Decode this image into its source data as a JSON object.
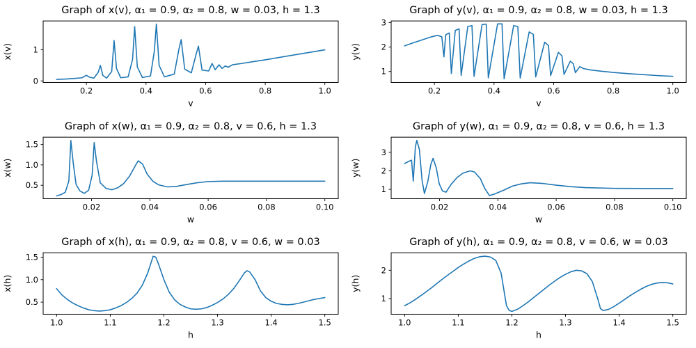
{
  "figure": {
    "background": "#ffffff",
    "line_color": "#1f77b4",
    "spine_color": "#000000",
    "text_color": "#000000"
  },
  "chart_data": [
    {
      "type": "line",
      "title": "Graph of x(v), α₁ = 0.9, α₂ = 0.8, w = 0.03, h = 1.3",
      "xlabel": "v",
      "ylabel": "x(v)",
      "xlim": [
        0.055,
        1.045
      ],
      "ylim": [
        -0.05,
        1.93
      ],
      "xticks": [
        0.2,
        0.4,
        0.6,
        0.8,
        1.0
      ],
      "xtick_labels": [
        "0.2",
        "0.4",
        "0.6",
        "0.8",
        "1.0"
      ],
      "yticks": [
        0,
        1
      ],
      "ytick_labels": [
        "0",
        "1"
      ],
      "legend": null,
      "grid": false,
      "points": [
        [
          0.1,
          0.05
        ],
        [
          0.13,
          0.06
        ],
        [
          0.16,
          0.08
        ],
        [
          0.185,
          0.1
        ],
        [
          0.2,
          0.18
        ],
        [
          0.21,
          0.12
        ],
        [
          0.225,
          0.09
        ],
        [
          0.24,
          0.28
        ],
        [
          0.247,
          0.5
        ],
        [
          0.255,
          0.18
        ],
        [
          0.268,
          0.09
        ],
        [
          0.285,
          0.3
        ],
        [
          0.293,
          1.3
        ],
        [
          0.301,
          0.4
        ],
        [
          0.315,
          0.1
        ],
        [
          0.34,
          0.13
        ],
        [
          0.355,
          0.7
        ],
        [
          0.362,
          1.75
        ],
        [
          0.371,
          0.45
        ],
        [
          0.388,
          0.11
        ],
        [
          0.415,
          0.16
        ],
        [
          0.428,
          0.95
        ],
        [
          0.435,
          1.83
        ],
        [
          0.444,
          0.5
        ],
        [
          0.462,
          0.13
        ],
        [
          0.495,
          0.22
        ],
        [
          0.51,
          1.0
        ],
        [
          0.518,
          1.33
        ],
        [
          0.53,
          0.38
        ],
        [
          0.552,
          0.26
        ],
        [
          0.568,
          0.85
        ],
        [
          0.576,
          1.12
        ],
        [
          0.588,
          0.35
        ],
        [
          0.61,
          0.32
        ],
        [
          0.622,
          0.56
        ],
        [
          0.632,
          0.36
        ],
        [
          0.645,
          0.52
        ],
        [
          0.655,
          0.4
        ],
        [
          0.666,
          0.48
        ],
        [
          0.676,
          0.44
        ],
        [
          0.69,
          0.52
        ],
        [
          0.72,
          0.56
        ],
        [
          0.76,
          0.62
        ],
        [
          0.8,
          0.68
        ],
        [
          0.85,
          0.76
        ],
        [
          0.9,
          0.84
        ],
        [
          0.95,
          0.92
        ],
        [
          1.0,
          1.0
        ]
      ]
    },
    {
      "type": "line",
      "title": "Graph of y(v), α₁ = 0.9, α₂ = 0.8, w = 0.03, h = 1.3",
      "xlabel": "v",
      "ylabel": "y(v)",
      "xlim": [
        0.055,
        1.045
      ],
      "ylim": [
        0.55,
        3.07
      ],
      "xticks": [
        0.2,
        0.4,
        0.6,
        0.8,
        1.0
      ],
      "xtick_labels": [
        "0.2",
        "0.4",
        "0.6",
        "0.8",
        "1.0"
      ],
      "yticks": [
        1,
        2,
        3
      ],
      "ytick_labels": [
        "1",
        "2",
        "3"
      ],
      "legend": null,
      "grid": false,
      "points": [
        [
          0.1,
          2.05
        ],
        [
          0.13,
          2.18
        ],
        [
          0.16,
          2.3
        ],
        [
          0.19,
          2.42
        ],
        [
          0.21,
          2.48
        ],
        [
          0.225,
          2.42
        ],
        [
          0.232,
          1.6
        ],
        [
          0.238,
          2.5
        ],
        [
          0.25,
          2.58
        ],
        [
          0.257,
          0.92
        ],
        [
          0.27,
          2.68
        ],
        [
          0.283,
          2.75
        ],
        [
          0.29,
          0.84
        ],
        [
          0.312,
          2.84
        ],
        [
          0.326,
          2.88
        ],
        [
          0.333,
          0.8
        ],
        [
          0.36,
          2.92
        ],
        [
          0.374,
          2.94
        ],
        [
          0.381,
          0.74
        ],
        [
          0.412,
          2.95
        ],
        [
          0.427,
          2.95
        ],
        [
          0.434,
          0.7
        ],
        [
          0.466,
          2.88
        ],
        [
          0.48,
          2.84
        ],
        [
          0.488,
          0.73
        ],
        [
          0.518,
          2.62
        ],
        [
          0.532,
          2.52
        ],
        [
          0.54,
          0.78
        ],
        [
          0.57,
          2.2
        ],
        [
          0.583,
          2.06
        ],
        [
          0.59,
          0.83
        ],
        [
          0.616,
          1.78
        ],
        [
          0.628,
          1.64
        ],
        [
          0.635,
          0.88
        ],
        [
          0.656,
          1.42
        ],
        [
          0.666,
          1.32
        ],
        [
          0.673,
          0.95
        ],
        [
          0.688,
          1.2
        ],
        [
          0.7,
          1.12
        ],
        [
          0.725,
          1.06
        ],
        [
          0.76,
          1.01
        ],
        [
          0.8,
          0.96
        ],
        [
          0.85,
          0.91
        ],
        [
          0.9,
          0.87
        ],
        [
          0.95,
          0.83
        ],
        [
          1.0,
          0.8
        ]
      ]
    },
    {
      "type": "line",
      "title": "Graph of x(w), α₁ = 0.9, α₂ = 0.8, v = 0.6, h = 1.3",
      "xlabel": "w",
      "ylabel": "x(w)",
      "xlim": [
        0.0034,
        0.1046
      ],
      "ylim": [
        0.17,
        1.68
      ],
      "xticks": [
        0.02,
        0.04,
        0.06,
        0.08,
        0.1
      ],
      "xtick_labels": [
        "0.02",
        "0.04",
        "0.06",
        "0.08",
        "0.10"
      ],
      "yticks": [
        0.5,
        1.0,
        1.5
      ],
      "ytick_labels": [
        "0.5",
        "1.0",
        "1.5"
      ],
      "legend": null,
      "grid": false,
      "points": [
        [
          0.008,
          0.24
        ],
        [
          0.0095,
          0.27
        ],
        [
          0.011,
          0.33
        ],
        [
          0.0122,
          0.6
        ],
        [
          0.0129,
          1.6
        ],
        [
          0.0137,
          1.05
        ],
        [
          0.0147,
          0.52
        ],
        [
          0.016,
          0.36
        ],
        [
          0.0175,
          0.3
        ],
        [
          0.019,
          0.38
        ],
        [
          0.0202,
          0.75
        ],
        [
          0.0209,
          1.55
        ],
        [
          0.0217,
          1.08
        ],
        [
          0.023,
          0.56
        ],
        [
          0.025,
          0.42
        ],
        [
          0.027,
          0.39
        ],
        [
          0.029,
          0.44
        ],
        [
          0.031,
          0.54
        ],
        [
          0.033,
          0.72
        ],
        [
          0.035,
          0.98
        ],
        [
          0.036,
          1.1
        ],
        [
          0.0375,
          1.02
        ],
        [
          0.039,
          0.78
        ],
        [
          0.041,
          0.6
        ],
        [
          0.043,
          0.51
        ],
        [
          0.046,
          0.46
        ],
        [
          0.049,
          0.47
        ],
        [
          0.052,
          0.51
        ],
        [
          0.056,
          0.56
        ],
        [
          0.06,
          0.59
        ],
        [
          0.065,
          0.6
        ],
        [
          0.07,
          0.6
        ],
        [
          0.08,
          0.6
        ],
        [
          0.09,
          0.6
        ],
        [
          0.1,
          0.6
        ]
      ]
    },
    {
      "type": "line",
      "title": "Graph of y(w), α₁ = 0.9, α₂ = 0.8, v = 0.6, h = 1.3",
      "xlabel": "w",
      "ylabel": "y(w)",
      "xlim": [
        0.0034,
        0.1046
      ],
      "ylim": [
        0.5,
        3.82
      ],
      "xticks": [
        0.02,
        0.04,
        0.06,
        0.08,
        0.1
      ],
      "xtick_labels": [
        "0.02",
        "0.04",
        "0.06",
        "0.08",
        "0.10"
      ],
      "yticks": [
        1,
        2,
        3
      ],
      "ytick_labels": [
        "1",
        "2",
        "3"
      ],
      "legend": null,
      "grid": false,
      "points": [
        [
          0.008,
          2.4
        ],
        [
          0.0095,
          2.52
        ],
        [
          0.0104,
          2.58
        ],
        [
          0.011,
          1.45
        ],
        [
          0.0117,
          3.3
        ],
        [
          0.0122,
          3.65
        ],
        [
          0.0131,
          3.15
        ],
        [
          0.014,
          1.5
        ],
        [
          0.0148,
          0.78
        ],
        [
          0.016,
          1.45
        ],
        [
          0.017,
          2.35
        ],
        [
          0.0178,
          2.68
        ],
        [
          0.0189,
          2.15
        ],
        [
          0.0199,
          1.3
        ],
        [
          0.021,
          0.92
        ],
        [
          0.0222,
          0.85
        ],
        [
          0.024,
          1.28
        ],
        [
          0.026,
          1.64
        ],
        [
          0.028,
          1.88
        ],
        [
          0.0305,
          2.0
        ],
        [
          0.032,
          1.94
        ],
        [
          0.034,
          1.58
        ],
        [
          0.0355,
          1.05
        ],
        [
          0.0371,
          0.67
        ],
        [
          0.039,
          0.76
        ],
        [
          0.042,
          0.96
        ],
        [
          0.045,
          1.18
        ],
        [
          0.048,
          1.3
        ],
        [
          0.051,
          1.36
        ],
        [
          0.055,
          1.33
        ],
        [
          0.06,
          1.23
        ],
        [
          0.065,
          1.15
        ],
        [
          0.07,
          1.1
        ],
        [
          0.08,
          1.06
        ],
        [
          0.09,
          1.05
        ],
        [
          0.1,
          1.05
        ]
      ]
    },
    {
      "type": "line",
      "title": "Graph of x(h), α₁ = 0.9, α₂ = 0.8, v = 0.6, w = 0.03",
      "xlabel": "h",
      "ylabel": "x(h)",
      "xlim": [
        0.975,
        1.525
      ],
      "ylim": [
        0.23,
        1.6
      ],
      "xticks": [
        1.0,
        1.1,
        1.2,
        1.3,
        1.4,
        1.5
      ],
      "xtick_labels": [
        "1.0",
        "1.1",
        "1.2",
        "1.3",
        "1.4",
        "1.5"
      ],
      "yticks": [
        0.5,
        1.0,
        1.5
      ],
      "ytick_labels": [
        "0.5",
        "1.0",
        "1.5"
      ],
      "legend": null,
      "grid": false,
      "points": [
        [
          1.0,
          0.8
        ],
        [
          1.01,
          0.66
        ],
        [
          1.02,
          0.56
        ],
        [
          1.03,
          0.48
        ],
        [
          1.04,
          0.42
        ],
        [
          1.05,
          0.37
        ],
        [
          1.06,
          0.33
        ],
        [
          1.07,
          0.31
        ],
        [
          1.08,
          0.3
        ],
        [
          1.09,
          0.31
        ],
        [
          1.1,
          0.33
        ],
        [
          1.11,
          0.37
        ],
        [
          1.12,
          0.42
        ],
        [
          1.13,
          0.49
        ],
        [
          1.14,
          0.58
        ],
        [
          1.15,
          0.7
        ],
        [
          1.16,
          0.88
        ],
        [
          1.17,
          1.15
        ],
        [
          1.18,
          1.52
        ],
        [
          1.185,
          1.5
        ],
        [
          1.19,
          1.35
        ],
        [
          1.2,
          1.0
        ],
        [
          1.21,
          0.72
        ],
        [
          1.22,
          0.55
        ],
        [
          1.23,
          0.45
        ],
        [
          1.24,
          0.39
        ],
        [
          1.25,
          0.35
        ],
        [
          1.26,
          0.34
        ],
        [
          1.27,
          0.35
        ],
        [
          1.28,
          0.38
        ],
        [
          1.29,
          0.43
        ],
        [
          1.3,
          0.49
        ],
        [
          1.31,
          0.57
        ],
        [
          1.32,
          0.67
        ],
        [
          1.33,
          0.8
        ],
        [
          1.34,
          0.97
        ],
        [
          1.35,
          1.15
        ],
        [
          1.355,
          1.2
        ],
        [
          1.36,
          1.17
        ],
        [
          1.37,
          1.0
        ],
        [
          1.38,
          0.75
        ],
        [
          1.39,
          0.6
        ],
        [
          1.4,
          0.52
        ],
        [
          1.41,
          0.47
        ],
        [
          1.42,
          0.45
        ],
        [
          1.43,
          0.44
        ],
        [
          1.44,
          0.45
        ],
        [
          1.45,
          0.47
        ],
        [
          1.46,
          0.5
        ],
        [
          1.47,
          0.53
        ],
        [
          1.48,
          0.56
        ],
        [
          1.49,
          0.58
        ],
        [
          1.5,
          0.6
        ]
      ]
    },
    {
      "type": "line",
      "title": "Graph of y(h), α₁ = 0.9, α₂ = 0.8, v = 0.6, w = 0.03",
      "xlabel": "h",
      "ylabel": "y(h)",
      "xlim": [
        0.975,
        1.525
      ],
      "ylim": [
        0.45,
        2.62
      ],
      "xticks": [
        1.0,
        1.1,
        1.2,
        1.3,
        1.4,
        1.5
      ],
      "xtick_labels": [
        "1.0",
        "1.1",
        "1.2",
        "1.3",
        "1.4",
        "1.5"
      ],
      "yticks": [
        1,
        2
      ],
      "ytick_labels": [
        "1",
        "2"
      ],
      "legend": null,
      "grid": false,
      "points": [
        [
          1.0,
          0.75
        ],
        [
          1.01,
          0.85
        ],
        [
          1.02,
          0.97
        ],
        [
          1.03,
          1.1
        ],
        [
          1.04,
          1.24
        ],
        [
          1.05,
          1.38
        ],
        [
          1.06,
          1.53
        ],
        [
          1.07,
          1.68
        ],
        [
          1.08,
          1.82
        ],
        [
          1.09,
          1.96
        ],
        [
          1.1,
          2.1
        ],
        [
          1.11,
          2.22
        ],
        [
          1.12,
          2.33
        ],
        [
          1.13,
          2.42
        ],
        [
          1.14,
          2.48
        ],
        [
          1.15,
          2.5
        ],
        [
          1.16,
          2.47
        ],
        [
          1.17,
          2.35
        ],
        [
          1.18,
          1.9
        ],
        [
          1.19,
          0.75
        ],
        [
          1.195,
          0.58
        ],
        [
          1.2,
          0.55
        ],
        [
          1.21,
          0.62
        ],
        [
          1.22,
          0.74
        ],
        [
          1.23,
          0.88
        ],
        [
          1.24,
          1.03
        ],
        [
          1.25,
          1.18
        ],
        [
          1.26,
          1.33
        ],
        [
          1.27,
          1.48
        ],
        [
          1.28,
          1.62
        ],
        [
          1.29,
          1.75
        ],
        [
          1.3,
          1.86
        ],
        [
          1.31,
          1.95
        ],
        [
          1.32,
          2.0
        ],
        [
          1.33,
          1.98
        ],
        [
          1.34,
          1.88
        ],
        [
          1.35,
          1.6
        ],
        [
          1.36,
          1.0
        ],
        [
          1.365,
          0.65
        ],
        [
          1.37,
          0.58
        ],
        [
          1.38,
          0.62
        ],
        [
          1.39,
          0.72
        ],
        [
          1.4,
          0.84
        ],
        [
          1.41,
          0.97
        ],
        [
          1.42,
          1.1
        ],
        [
          1.43,
          1.22
        ],
        [
          1.44,
          1.33
        ],
        [
          1.45,
          1.43
        ],
        [
          1.46,
          1.5
        ],
        [
          1.47,
          1.55
        ],
        [
          1.48,
          1.57
        ],
        [
          1.49,
          1.56
        ],
        [
          1.5,
          1.52
        ]
      ]
    }
  ]
}
